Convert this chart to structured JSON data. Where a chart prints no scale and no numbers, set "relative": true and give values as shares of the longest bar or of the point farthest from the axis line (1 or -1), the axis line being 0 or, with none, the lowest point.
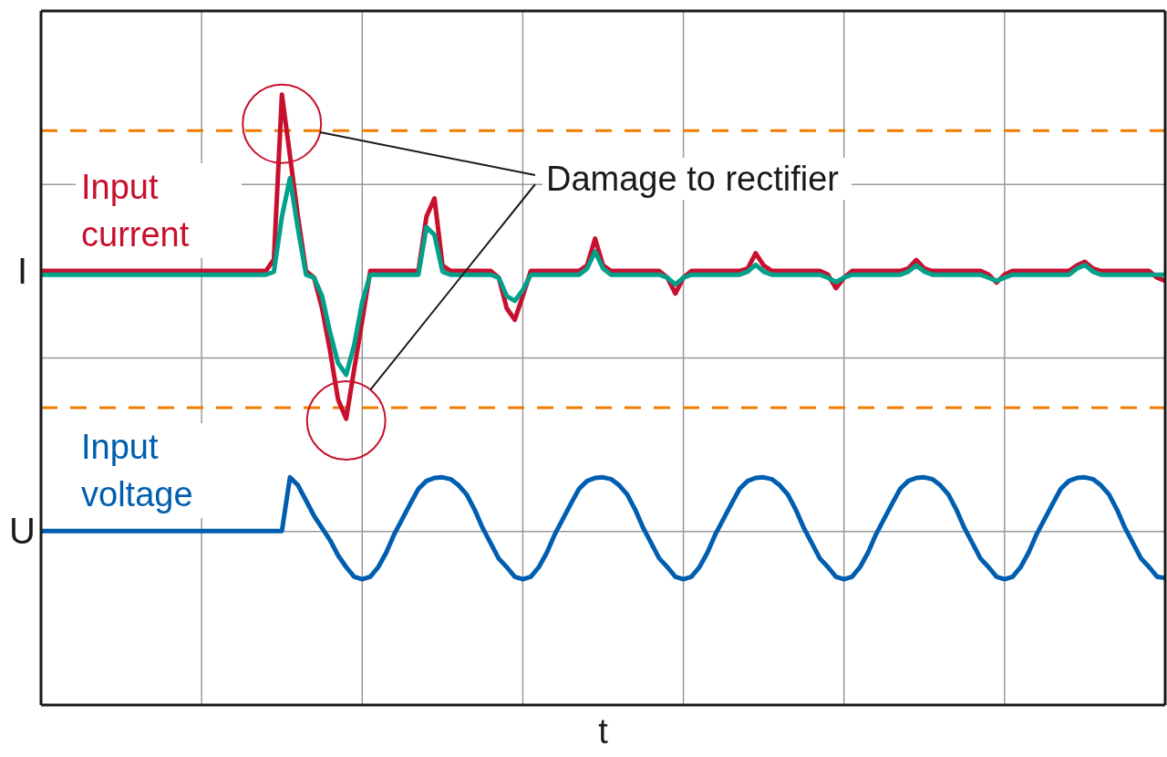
{
  "chart_data": {
    "type": "line",
    "xlabel": "t",
    "relative": true,
    "grid": true,
    "marker": "none",
    "categories": [
      null,
      null,
      null,
      null,
      null,
      null,
      null,
      null,
      null,
      null,
      null,
      null,
      null,
      null,
      null,
      null,
      null,
      null,
      null,
      null,
      null,
      null,
      null,
      null,
      null,
      null,
      null,
      null,
      null,
      null,
      null,
      null,
      null,
      null,
      null,
      null,
      null,
      null,
      null,
      null,
      null,
      null,
      null,
      null,
      null,
      null,
      null,
      null,
      null,
      null,
      null,
      null,
      null,
      null,
      null,
      null,
      null,
      null,
      null,
      null,
      null,
      null,
      null,
      null,
      null,
      null,
      null,
      null,
      null,
      null,
      null,
      null,
      null,
      null,
      null,
      null,
      null,
      null,
      null,
      null,
      null,
      null,
      null,
      null,
      null,
      null,
      null,
      null,
      null,
      null,
      null,
      null,
      null,
      null,
      null,
      null,
      null,
      null,
      null,
      null,
      null,
      null,
      null,
      null,
      null,
      null,
      null,
      null,
      null,
      null,
      null,
      null,
      null,
      null,
      null,
      null,
      null,
      null,
      null,
      null,
      null,
      null,
      null,
      null,
      null,
      null,
      null,
      null,
      null,
      null,
      null,
      null,
      null,
      null,
      null,
      null,
      null,
      null,
      null,
      null,
      null
    ],
    "series": [
      {
        "name": "Input current",
        "color": "#c8102e",
        "values": [
          0.711,
          0.711,
          0.711,
          0.711,
          0.711,
          0.711,
          0.711,
          0.711,
          0.711,
          0.711,
          0.711,
          0.711,
          0.711,
          0.711,
          0.711,
          0.711,
          0.711,
          0.711,
          0.711,
          0.711,
          0.711,
          0.711,
          0.711,
          0.711,
          0.711,
          0.711,
          0.711,
          0.711,
          0.711,
          0.73,
          1,
          0.9,
          0.8,
          0.711,
          0.7,
          0.65,
          0.58,
          0.5,
          0.469,
          0.55,
          0.63,
          0.711,
          0.711,
          0.711,
          0.711,
          0.711,
          0.711,
          0.711,
          0.8,
          0.83,
          0.72,
          0.711,
          0.711,
          0.711,
          0.711,
          0.711,
          0.711,
          0.7,
          0.65,
          0.631,
          0.67,
          0.711,
          0.711,
          0.711,
          0.711,
          0.711,
          0.711,
          0.711,
          0.72,
          0.764,
          0.72,
          0.711,
          0.711,
          0.711,
          0.711,
          0.711,
          0.711,
          0.711,
          0.7,
          0.674,
          0.7,
          0.711,
          0.711,
          0.711,
          0.711,
          0.711,
          0.711,
          0.711,
          0.715,
          0.74,
          0.72,
          0.711,
          0.711,
          0.711,
          0.711,
          0.711,
          0.711,
          0.711,
          0.705,
          0.683,
          0.7,
          0.711,
          0.711,
          0.711,
          0.711,
          0.711,
          0.711,
          0.711,
          0.715,
          0.729,
          0.715,
          0.711,
          0.711,
          0.711,
          0.711,
          0.711,
          0.711,
          0.711,
          0.705,
          0.692,
          0.705,
          0.711,
          0.711,
          0.711,
          0.711,
          0.711,
          0.711,
          0.711,
          0.711,
          0.72,
          0.726,
          0.715,
          0.711,
          0.711,
          0.711,
          0.711,
          0.711,
          0.711,
          0.711,
          0.7,
          0.695
        ]
      },
      {
        "color": "#00a08a",
        "values": [
          0.705,
          0.705,
          0.705,
          0.705,
          0.705,
          0.705,
          0.705,
          0.705,
          0.705,
          0.705,
          0.705,
          0.705,
          0.705,
          0.705,
          0.705,
          0.705,
          0.705,
          0.705,
          0.705,
          0.705,
          0.705,
          0.705,
          0.705,
          0.705,
          0.705,
          0.705,
          0.705,
          0.705,
          0.705,
          0.71,
          0.8,
          0.863,
          0.78,
          0.705,
          0.7,
          0.67,
          0.61,
          0.56,
          0.541,
          0.59,
          0.66,
          0.705,
          0.705,
          0.705,
          0.705,
          0.705,
          0.705,
          0.705,
          0.783,
          0.77,
          0.71,
          0.705,
          0.705,
          0.705,
          0.705,
          0.705,
          0.705,
          0.7,
          0.67,
          0.662,
          0.68,
          0.705,
          0.705,
          0.705,
          0.705,
          0.705,
          0.705,
          0.705,
          0.715,
          0.743,
          0.715,
          0.705,
          0.705,
          0.705,
          0.705,
          0.705,
          0.705,
          0.705,
          0.7,
          0.689,
          0.7,
          0.705,
          0.705,
          0.705,
          0.705,
          0.705,
          0.705,
          0.705,
          0.71,
          0.721,
          0.71,
          0.705,
          0.705,
          0.705,
          0.705,
          0.705,
          0.705,
          0.705,
          0.7,
          0.693,
          0.7,
          0.705,
          0.705,
          0.705,
          0.705,
          0.705,
          0.705,
          0.705,
          0.71,
          0.72,
          0.71,
          0.705,
          0.705,
          0.705,
          0.705,
          0.705,
          0.705,
          0.705,
          0.7,
          0.695,
          0.7,
          0.705,
          0.705,
          0.705,
          0.705,
          0.705,
          0.705,
          0.705,
          0.705,
          0.715,
          0.721,
          0.71,
          0.705,
          0.705,
          0.705,
          0.705,
          0.705,
          0.705,
          0.705,
          0.705,
          0.705
        ]
      },
      {
        "name": "Input voltage",
        "color": "#005eb0",
        "values": [
          0.285,
          0.285,
          0.285,
          0.285,
          0.285,
          0.285,
          0.285,
          0.285,
          0.285,
          0.285,
          0.285,
          0.285,
          0.285,
          0.285,
          0.285,
          0.285,
          0.285,
          0.285,
          0.285,
          0.285,
          0.285,
          0.285,
          0.285,
          0.285,
          0.285,
          0.285,
          0.285,
          0.285,
          0.285,
          0.285,
          0.285,
          0.373,
          0.36,
          0.335,
          0.31,
          0.29,
          0.27,
          0.245,
          0.226,
          0.21,
          0.206,
          0.21,
          0.226,
          0.25,
          0.28,
          0.305,
          0.33,
          0.354,
          0.367,
          0.372,
          0.373,
          0.37,
          0.36,
          0.345,
          0.32,
          0.29,
          0.265,
          0.24,
          0.226,
          0.21,
          0.206,
          0.21,
          0.226,
          0.25,
          0.28,
          0.305,
          0.33,
          0.354,
          0.367,
          0.372,
          0.373,
          0.37,
          0.36,
          0.345,
          0.32,
          0.29,
          0.265,
          0.24,
          0.226,
          0.21,
          0.206,
          0.21,
          0.226,
          0.25,
          0.28,
          0.305,
          0.33,
          0.354,
          0.367,
          0.372,
          0.373,
          0.37,
          0.36,
          0.345,
          0.32,
          0.29,
          0.265,
          0.24,
          0.226,
          0.21,
          0.206,
          0.21,
          0.226,
          0.25,
          0.28,
          0.305,
          0.33,
          0.354,
          0.367,
          0.372,
          0.373,
          0.37,
          0.36,
          0.345,
          0.32,
          0.29,
          0.265,
          0.24,
          0.226,
          0.21,
          0.206,
          0.21,
          0.226,
          0.25,
          0.28,
          0.305,
          0.33,
          0.354,
          0.367,
          0.372,
          0.373,
          0.37,
          0.36,
          0.345,
          0.32,
          0.29,
          0.265,
          0.24,
          0.226,
          0.21,
          0.208
        ]
      }
    ],
    "ref_lines": [
      {
        "axis": "y",
        "value": 0.941,
        "color": "#ef7d00",
        "line_style": "dashed"
      },
      {
        "axis": "y",
        "value": 0.487,
        "color": "#ef7d00",
        "line_style": "dashed"
      }
    ],
    "annotations": [
      "Damage to rectifier",
      "I",
      "U"
    ]
  }
}
